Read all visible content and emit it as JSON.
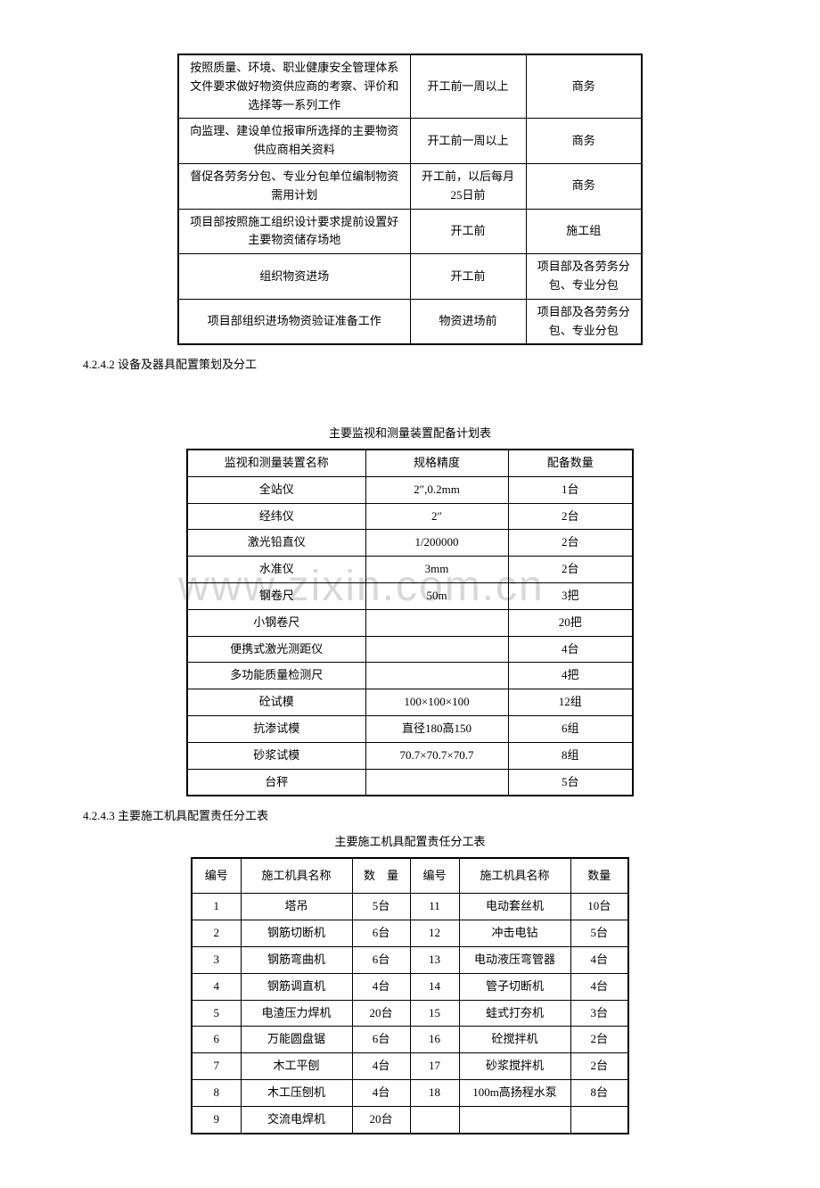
{
  "watermark": "www.zixin.com.cn",
  "table1": {
    "rows": [
      {
        "task": "按照质量、环境、职业健康安全管理体系文件要求做好物资供应商的考察、评价和选择等一系列工作",
        "time": "开工前一周以上",
        "resp": "商务"
      },
      {
        "task": "向监理、建设单位报审所选择的主要物资供应商相关资料",
        "time": "开工前一周以上",
        "resp": "商务"
      },
      {
        "task": "督促各劳务分包、专业分包单位编制物资需用计划",
        "time": "开工前，以后每月25日前",
        "resp": "商务"
      },
      {
        "task": "项目部按照施工组织设计要求提前设置好主要物资储存场地",
        "time": "开工前",
        "resp": "施工组"
      },
      {
        "task": "组织物资进场",
        "time": "开工前",
        "resp": "项目部及各劳务分包、专业分包"
      },
      {
        "task": "项目部组织进场物资验证准备工作",
        "time": "物资进场前",
        "resp": "项目部及各劳务分包、专业分包"
      }
    ]
  },
  "section_4242": "4.2.4.2 设备及器具配置策划及分工",
  "table2": {
    "caption": "主要监视和测量装置配备计划表",
    "header": {
      "name": "监视和测量装置名称",
      "spec": "规格精度",
      "qty": "配备数量"
    },
    "rows": [
      {
        "name": "全站仪",
        "spec": "2″,0.2mm",
        "qty": "1台"
      },
      {
        "name": "经纬仪",
        "spec": "2″",
        "qty": "2台"
      },
      {
        "name": "激光铅直仪",
        "spec": "1/200000",
        "qty": "2台"
      },
      {
        "name": "水准仪",
        "spec": "3mm",
        "qty": "2台"
      },
      {
        "name": "钢卷尺",
        "spec": "50m",
        "qty": "3把"
      },
      {
        "name": "小钢卷尺",
        "spec": "",
        "qty": "20把"
      },
      {
        "name": "便携式激光测距仪",
        "spec": "",
        "qty": "4台"
      },
      {
        "name": "多功能质量检测尺",
        "spec": "",
        "qty": "4把"
      },
      {
        "name": "砼试模",
        "spec": "100×100×100",
        "qty": "12组"
      },
      {
        "name": "抗渗试模",
        "spec": "直径180高150",
        "qty": "6组"
      },
      {
        "name": "砂浆试模",
        "spec": "70.7×70.7×70.7",
        "qty": "8组"
      },
      {
        "name": "台秤",
        "spec": "",
        "qty": "5台"
      }
    ]
  },
  "section_4243": "4.2.4.3 主要施工机具配置责任分工表",
  "table3": {
    "caption": "主要施工机具配置责任分工表",
    "header": {
      "no": "编号",
      "name": "施工机具名称",
      "qty": "数　量",
      "no2": "编号",
      "name2": "施工机具名称",
      "qty2": "数量"
    },
    "rows": [
      {
        "n": "1",
        "name": "塔吊",
        "q": "5台",
        "n2": "11",
        "name2": "电动套丝机",
        "q2": "10台"
      },
      {
        "n": "2",
        "name": "钢筋切断机",
        "q": "6台",
        "n2": "12",
        "name2": "冲击电钻",
        "q2": "5台"
      },
      {
        "n": "3",
        "name": "钢筋弯曲机",
        "q": "6台",
        "n2": "13",
        "name2": "电动液压弯管器",
        "q2": "4台"
      },
      {
        "n": "4",
        "name": "钢筋调直机",
        "q": "4台",
        "n2": "14",
        "name2": "管子切断机",
        "q2": "4台"
      },
      {
        "n": "5",
        "name": "电渣压力焊机",
        "q": "20台",
        "n2": "15",
        "name2": "蛙式打夯机",
        "q2": "3台"
      },
      {
        "n": "6",
        "name": "万能圆盘锯",
        "q": "6台",
        "n2": "16",
        "name2": "砼搅拌机",
        "q2": "2台"
      },
      {
        "n": "7",
        "name": "木工平刨",
        "q": "4台",
        "n2": "17",
        "name2": "砂浆搅拌机",
        "q2": "2台"
      },
      {
        "n": "8",
        "name": "木工压刨机",
        "q": "4台",
        "n2": "18",
        "name2": "100m高扬程水泵",
        "q2": "8台"
      },
      {
        "n": "9",
        "name": "交流电焊机",
        "q": "20台",
        "n2": "",
        "name2": "",
        "q2": ""
      }
    ]
  }
}
